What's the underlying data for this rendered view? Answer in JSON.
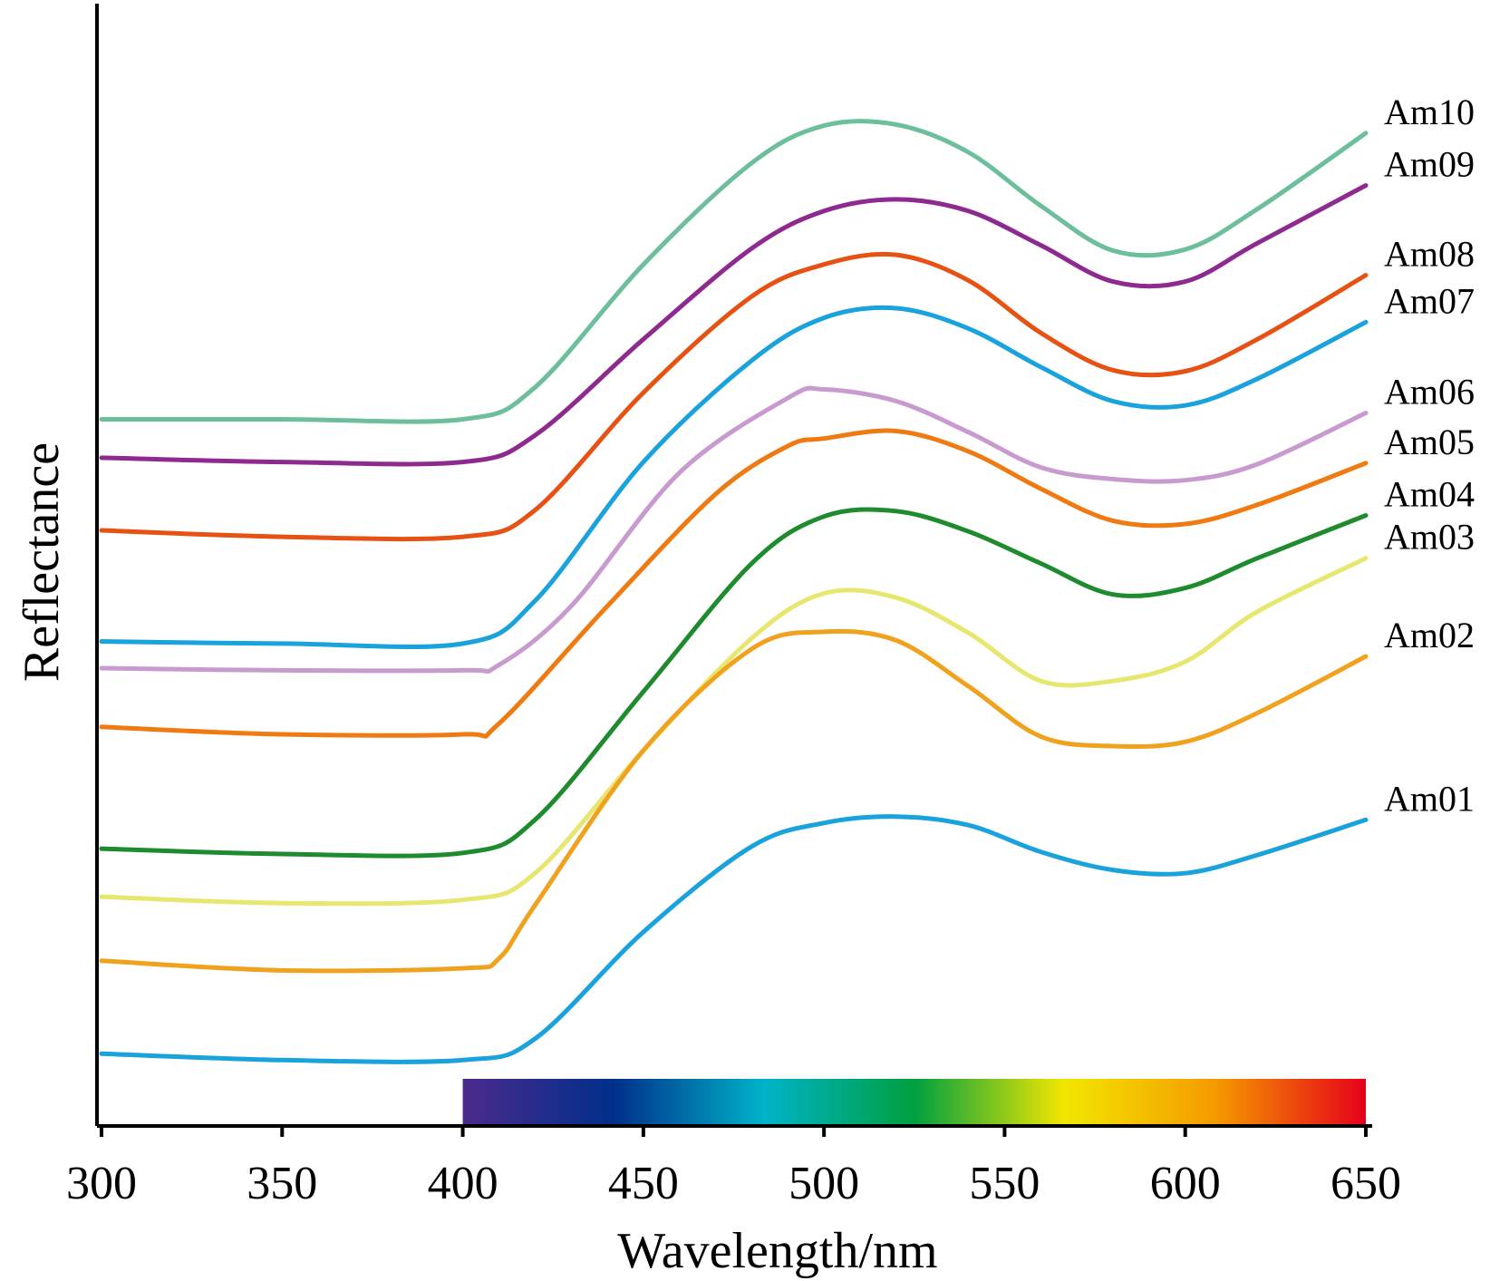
{
  "chart_data": {
    "type": "line",
    "xlabel": "Wavelength/nm",
    "ylabel": "Reflectance",
    "xlim": [
      300,
      650
    ],
    "ylim": [
      0,
      100
    ],
    "xticks": [
      300,
      350,
      400,
      450,
      500,
      550,
      600,
      650
    ],
    "grid": false,
    "legend": "series labels at right end of lines",
    "colorbar": {
      "range": [
        400,
        650
      ],
      "stops": [
        "#4b2a8c",
        "#002f8a",
        "#00b3c8",
        "#00a040",
        "#f2e600",
        "#f59a00",
        "#e6001a"
      ]
    },
    "series": [
      {
        "name": "Am10",
        "color": "#6cbf9a",
        "x": [
          300,
          350,
          400,
          420,
          450,
          480,
          500,
          520,
          540,
          560,
          580,
          600,
          620,
          650
        ],
        "y": [
          66.0,
          66.0,
          66.0,
          69.0,
          80.5,
          90.0,
          93.5,
          93.6,
          91.0,
          86.0,
          81.8,
          81.9,
          85.7,
          92.8
        ]
      },
      {
        "name": "Am09",
        "color": "#8e2a8f",
        "x": [
          300,
          350,
          400,
          420,
          450,
          480,
          500,
          520,
          540,
          560,
          580,
          600,
          620,
          650
        ],
        "y": [
          62.4,
          62.0,
          62.0,
          64.5,
          73.5,
          82.0,
          85.5,
          86.6,
          85.5,
          82.3,
          78.9,
          78.9,
          82.5,
          87.9
        ]
      },
      {
        "name": "Am08",
        "color": "#e55214",
        "x": [
          300,
          350,
          400,
          420,
          450,
          480,
          500,
          520,
          540,
          560,
          580,
          600,
          620,
          650
        ],
        "y": [
          55.6,
          55.0,
          55.0,
          57.5,
          68.5,
          77.5,
          80.5,
          81.4,
          79.0,
          74.1,
          70.6,
          70.5,
          73.5,
          79.5
        ]
      },
      {
        "name": "Am07",
        "color": "#1aa2dc",
        "x": [
          300,
          350,
          400,
          420,
          450,
          480,
          500,
          520,
          540,
          560,
          580,
          600,
          620,
          650
        ],
        "y": [
          45.2,
          45.0,
          45.0,
          49.0,
          62.0,
          71.5,
          75.5,
          76.4,
          74.5,
          70.9,
          67.7,
          67.3,
          69.8,
          75.1
        ]
      },
      {
        "name": "Am06",
        "color": "#c89ad0",
        "x": [
          300,
          350,
          400,
          410,
          430,
          460,
          490,
          500,
          520,
          540,
          560,
          580,
          600,
          620,
          650
        ],
        "y": [
          42.7,
          42.5,
          42.5,
          43.0,
          48.5,
          61.0,
          68.0,
          68.8,
          67.7,
          64.8,
          61.5,
          60.4,
          60.3,
          61.8,
          66.6
        ]
      },
      {
        "name": "Am05",
        "color": "#ef7a12",
        "x": [
          300,
          350,
          400,
          410,
          440,
          470,
          490,
          500,
          520,
          540,
          560,
          580,
          600,
          620,
          650
        ],
        "y": [
          37.2,
          36.5,
          36.5,
          37.5,
          48.5,
          59.0,
          63.5,
          64.2,
          64.9,
          63.0,
          59.5,
          56.5,
          56.2,
          58.0,
          61.9
        ]
      },
      {
        "name": "Am04",
        "color": "#1e8b2e",
        "x": [
          300,
          350,
          400,
          420,
          450,
          480,
          500,
          520,
          540,
          560,
          580,
          600,
          620,
          650
        ],
        "y": [
          25.8,
          25.3,
          25.4,
          28.5,
          40.5,
          52.5,
          56.9,
          57.4,
          55.5,
          52.5,
          49.6,
          50.2,
          53.0,
          57.0
        ]
      },
      {
        "name": "Am03",
        "color": "#e7e770",
        "x": [
          300,
          350,
          400,
          420,
          450,
          480,
          500,
          520,
          540,
          560,
          580,
          600,
          620,
          650
        ],
        "y": [
          21.3,
          20.7,
          21.0,
          23.5,
          35.0,
          45.5,
          49.7,
          49.3,
          46.0,
          41.5,
          41.5,
          43.3,
          48.0,
          53.0
        ]
      },
      {
        "name": "Am02",
        "color": "#f0a21f",
        "x": [
          300,
          350,
          400,
          410,
          420,
          450,
          480,
          500,
          520,
          540,
          560,
          580,
          600,
          620,
          650
        ],
        "y": [
          15.3,
          14.4,
          14.6,
          15.5,
          20.5,
          35.0,
          44.5,
          46.1,
          45.3,
          41.0,
          36.3,
          35.4,
          35.8,
          38.5,
          43.8
        ]
      },
      {
        "name": "Am01",
        "color": "#1aa2dc",
        "x": [
          300,
          350,
          400,
          420,
          450,
          480,
          500,
          520,
          540,
          560,
          580,
          600,
          620,
          650
        ],
        "y": [
          6.6,
          6.0,
          6.0,
          8.0,
          18.0,
          26.0,
          28.2,
          28.8,
          28.0,
          25.5,
          23.8,
          23.5,
          25.2,
          28.5
        ]
      }
    ]
  }
}
